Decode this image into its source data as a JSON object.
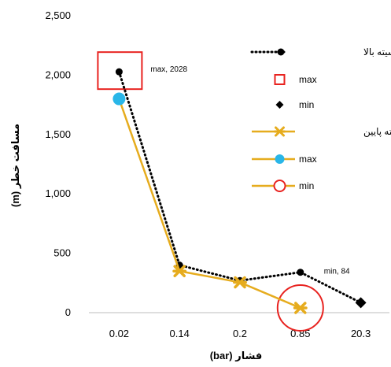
{
  "chart_data": {
    "type": "line",
    "categories": [
      "0.02",
      "0.14",
      "0.2",
      "0.85",
      "20.3"
    ],
    "xlabel": "فشار (bar)",
    "ylabel": "مسافت خطر (m)",
    "ylim": [
      0,
      2500
    ],
    "yticks": [
      "0",
      "500",
      "1,000",
      "1,500",
      "2,000",
      "2,500"
    ],
    "grid": false,
    "legend_position": "right",
    "colors": {
      "high_line": "#000000",
      "low_line": "#E6AC1E",
      "low_max": "#29B6E8",
      "highlight_box": "#E8221F",
      "highlight_circle": "#E8221F"
    },
    "series": [
      {
        "name": "دانسیته بالا",
        "style": "dotted",
        "values": [
          2028,
          400,
          270,
          340,
          84
        ]
      },
      {
        "name": "دانسیته پایین",
        "style": "solid",
        "values": [
          1800,
          350,
          255,
          40,
          null
        ]
      }
    ],
    "markers": [
      {
        "name": "max",
        "series": 0,
        "index": 0,
        "shape": "square-outline",
        "color": "#E8221F"
      },
      {
        "name": "min",
        "series": 0,
        "index": 4,
        "shape": "diamond",
        "color": "#000000"
      },
      {
        "name": "max",
        "series": 1,
        "index": 0,
        "shape": "circle-filled",
        "color": "#29B6E8"
      },
      {
        "name": "min",
        "series": 1,
        "index": 3,
        "shape": "circle-outline",
        "color": "#E8221F"
      }
    ],
    "annotations": [
      {
        "text": "max, 2028",
        "series": 0,
        "index": 0
      },
      {
        "text": "min, 84",
        "series": 0,
        "index": 3
      }
    ],
    "legend": [
      {
        "label": "دانسیته بالا",
        "kind": "high-line"
      },
      {
        "label": "max",
        "kind": "red-square"
      },
      {
        "label": "min",
        "kind": "black-diamond"
      },
      {
        "label": "دانسیته پایین",
        "kind": "low-line"
      },
      {
        "label": "max",
        "kind": "blue-circle-line"
      },
      {
        "label": "min",
        "kind": "red-circle-line"
      }
    ]
  }
}
